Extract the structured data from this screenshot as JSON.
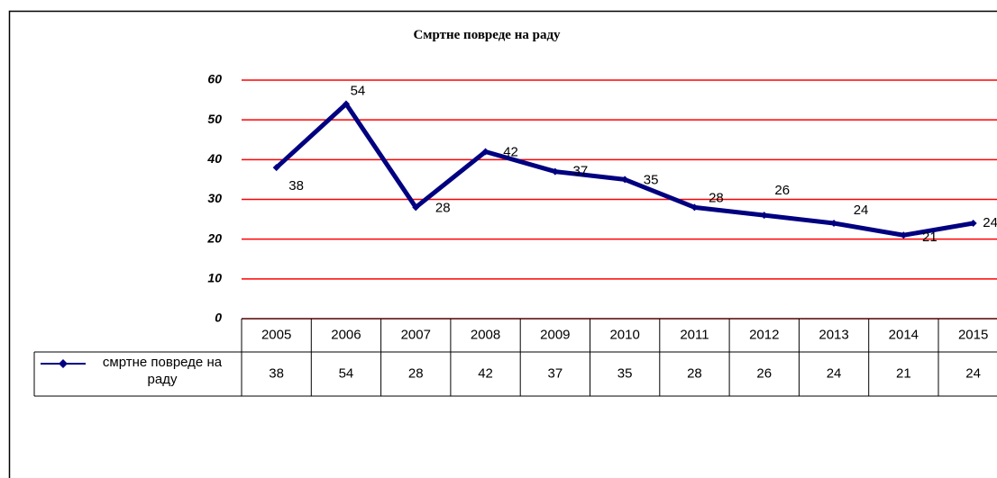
{
  "chart_data": {
    "type": "line",
    "title": "Смртне повреде на раду",
    "categories": [
      "2005",
      "2006",
      "2007",
      "2008",
      "2009",
      "2010",
      "2011",
      "2012",
      "2013",
      "2014",
      "2015"
    ],
    "series": [
      {
        "name": "смртне повреде на раду",
        "color": "#000080",
        "values": [
          38,
          54,
          28,
          42,
          37,
          35,
          28,
          26,
          24,
          21,
          24
        ]
      }
    ],
    "ylim": [
      0,
      60
    ],
    "yticks": [
      0,
      10,
      20,
      30,
      40,
      50,
      60
    ],
    "grid": true,
    "grid_color": "#ff0000",
    "data_table": true
  }
}
